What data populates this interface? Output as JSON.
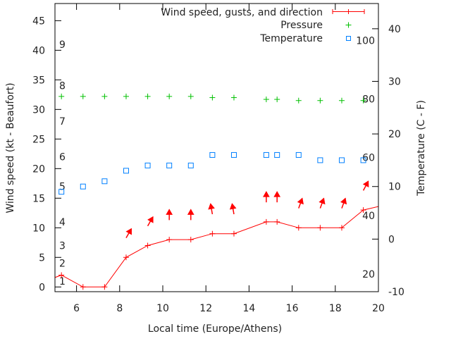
{
  "chart_data": {
    "type": "line",
    "xlabel": "Local time (Europe/Athens)",
    "ylabel": "Wind speed (kt - Beaufort)",
    "y2label": "Temperature (C - F)",
    "xlim": [
      5,
      20
    ],
    "ylim": [
      -0.8,
      47.9
    ],
    "y2lim": [
      -10,
      44.8
    ],
    "xticks": [
      6,
      8,
      10,
      12,
      14,
      16,
      18,
      20
    ],
    "yticks": [
      0,
      5,
      10,
      15,
      20,
      25,
      30,
      35,
      40,
      45
    ],
    "y2ticks": [
      -10,
      0,
      10,
      20,
      30,
      40
    ],
    "beaufort_labels": [
      {
        "label": "1",
        "kt": 1
      },
      {
        "label": "2",
        "kt": 4
      },
      {
        "label": "3",
        "kt": 7
      },
      {
        "label": "4",
        "kt": 11
      },
      {
        "label": "5",
        "kt": 17
      },
      {
        "label": "6",
        "kt": 22
      },
      {
        "label": "7",
        "kt": 28
      },
      {
        "label": "8",
        "kt": 34
      },
      {
        "label": "9",
        "kt": 41
      }
    ],
    "fahrenheit_labels": [
      {
        "label": "20",
        "f": 20
      },
      {
        "label": "40",
        "f": 40
      },
      {
        "label": "60",
        "f": 60
      },
      {
        "label": "80",
        "f": 80
      },
      {
        "label": "100",
        "f": 100
      }
    ],
    "legend_position": "top-right",
    "series": [
      {
        "name": "Wind speed, gusts, and direction",
        "color": "#ff0000",
        "x": [
          5.3,
          6.3,
          7.3,
          8.3,
          9.3,
          10.3,
          11.3,
          12.3,
          13.3,
          14.8,
          15.3,
          16.3,
          17.3,
          18.3,
          19.3
        ],
        "values": [
          2,
          0,
          0,
          5,
          7,
          8,
          8,
          9,
          9,
          11,
          11,
          10,
          10,
          10,
          13
        ],
        "line_start": [
          5,
          1.6
        ],
        "line_end": [
          20,
          13.6
        ],
        "arrow_heading_deg": [
          null,
          null,
          null,
          30,
          30,
          0,
          0,
          -10,
          -10,
          0,
          0,
          20,
          20,
          20,
          28
        ]
      },
      {
        "name": "Pressure",
        "color": "#00c000",
        "x": [
          5.3,
          6.3,
          7.3,
          8.3,
          9.3,
          10.3,
          11.3,
          12.3,
          13.3,
          14.8,
          15.3,
          16.3,
          17.3,
          18.3,
          19.3
        ],
        "values": [
          32.2,
          32.2,
          32.2,
          32.2,
          32.2,
          32.2,
          32.2,
          32.0,
          32.0,
          31.7,
          31.7,
          31.5,
          31.5,
          31.5,
          31.5
        ]
      },
      {
        "name": "Temperature",
        "color": "#0080ff",
        "axis": "y2",
        "x": [
          5.3,
          6.3,
          7.3,
          8.3,
          9.3,
          10.3,
          11.3,
          12.3,
          13.3,
          14.8,
          15.3,
          16.3,
          17.3,
          18.3,
          19.3
        ],
        "values": [
          9,
          10,
          11,
          13,
          14,
          14,
          14,
          16,
          16,
          16,
          16,
          16,
          15,
          15,
          15
        ]
      }
    ]
  }
}
